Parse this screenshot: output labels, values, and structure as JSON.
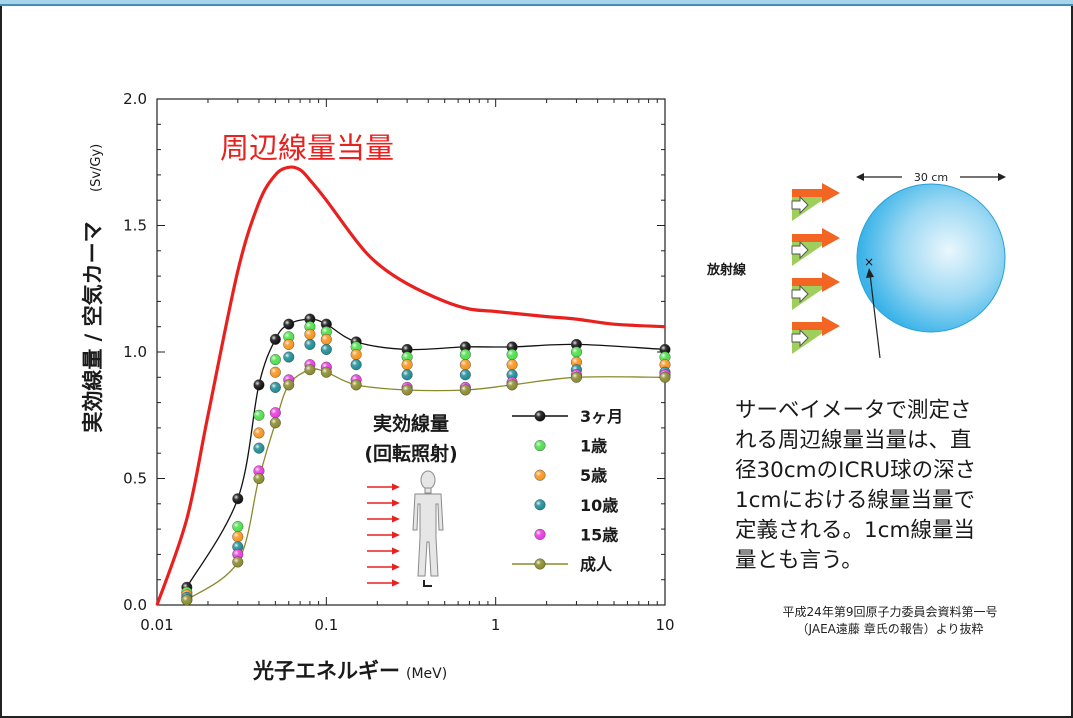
{
  "chart_data": {
    "type": "line",
    "scale": {
      "x": "log",
      "y": "linear"
    },
    "xlim": [
      0.01,
      10
    ],
    "ylim": [
      0.0,
      2.0
    ],
    "xticks": [
      {
        "value": 0.01,
        "label": "0.01"
      },
      {
        "value": 0.1,
        "label": "0.1"
      },
      {
        "value": 1,
        "label": "1"
      },
      {
        "value": 10,
        "label": "10"
      }
    ],
    "yticks": [
      {
        "value": 0.0,
        "label": "0.0"
      },
      {
        "value": 0.5,
        "label": "0.5"
      },
      {
        "value": 1.0,
        "label": "1.0"
      },
      {
        "value": 1.5,
        "label": "1.5"
      },
      {
        "value": 2.0,
        "label": "2.0"
      }
    ],
    "xlabel": "光子エネルギー",
    "xlabel_unit": "(MeV)",
    "ylabel": "実効線量 / 空気カーマ",
    "ylabel_unit": "(Sv/Gy)",
    "x_points": [
      0.015,
      0.03,
      0.04,
      0.05,
      0.06,
      0.08,
      0.1,
      0.15,
      0.3,
      0.662,
      1.25,
      3,
      10
    ],
    "series": [
      {
        "name": "周辺線量当量",
        "color": "#e8211f",
        "kind": "curve",
        "x": [
          0.01,
          0.015,
          0.02,
          0.03,
          0.04,
          0.05,
          0.06,
          0.07,
          0.08,
          0.1,
          0.15,
          0.2,
          0.3,
          0.5,
          0.7,
          1,
          2,
          3,
          5,
          10
        ],
        "values": [
          0.0,
          0.34,
          0.75,
          1.32,
          1.59,
          1.7,
          1.73,
          1.72,
          1.68,
          1.6,
          1.44,
          1.35,
          1.27,
          1.2,
          1.17,
          1.16,
          1.14,
          1.13,
          1.11,
          1.1
        ]
      },
      {
        "name": "3ヶ月",
        "color": "#111111",
        "kind": "line-marker",
        "values": [
          0.07,
          0.42,
          0.87,
          1.05,
          1.11,
          1.13,
          1.11,
          1.04,
          1.01,
          1.02,
          1.02,
          1.03,
          1.01
        ]
      },
      {
        "name": "1歳",
        "color": "#4ce04a",
        "kind": "marker",
        "values": [
          0.05,
          0.31,
          0.75,
          0.97,
          1.06,
          1.1,
          1.08,
          1.02,
          0.98,
          0.99,
          0.99,
          1.0,
          0.98
        ]
      },
      {
        "name": "5歳",
        "color": "#f7941d",
        "kind": "marker",
        "values": [
          0.04,
          0.27,
          0.68,
          0.92,
          1.03,
          1.07,
          1.05,
          0.99,
          0.95,
          0.95,
          0.95,
          0.96,
          0.95
        ]
      },
      {
        "name": "10歳",
        "color": "#1f8c96",
        "kind": "marker",
        "values": [
          0.03,
          0.23,
          0.62,
          0.86,
          0.98,
          1.03,
          1.01,
          0.95,
          0.91,
          0.91,
          0.91,
          0.93,
          0.92
        ]
      },
      {
        "name": "15歳",
        "color": "#e83adf",
        "kind": "marker",
        "values": [
          0.02,
          0.2,
          0.53,
          0.76,
          0.89,
          0.95,
          0.94,
          0.89,
          0.86,
          0.86,
          0.88,
          0.91,
          0.91
        ]
      },
      {
        "name": "成人",
        "color": "#8a8a2c",
        "kind": "line-marker",
        "values": [
          0.02,
          0.17,
          0.5,
          0.72,
          0.87,
          0.93,
          0.92,
          0.87,
          0.85,
          0.85,
          0.87,
          0.9,
          0.9
        ]
      }
    ],
    "annotations": {
      "red_label": "周辺線量当量",
      "inset_title_1": "実効線量",
      "inset_title_2": "(回転照射)"
    },
    "grid": false,
    "legend": "inside-right"
  },
  "diagram": {
    "radiation_label": "放射線",
    "width_label": "30 cm"
  },
  "note": {
    "lines": [
      "サーベイメータで測定さ",
      "れる周辺線量当量は、直",
      "径30cmのICRU球の深さ",
      "1cmにおける線量当量で",
      "定義される。1cm線量当",
      "量とも言う。"
    ]
  },
  "source": {
    "line1": "平成24年第9回原子力委員会資料第一号",
    "line2": "（JAEA遠藤 章氏の報告）より抜粋"
  },
  "colors": {
    "frame_band": "#a9d3e8",
    "frame_band_border": "#3f8fb8",
    "sphere": "#39b3e8",
    "arrow_orange": "#f26522",
    "arrow_green": "#8dc63f"
  }
}
